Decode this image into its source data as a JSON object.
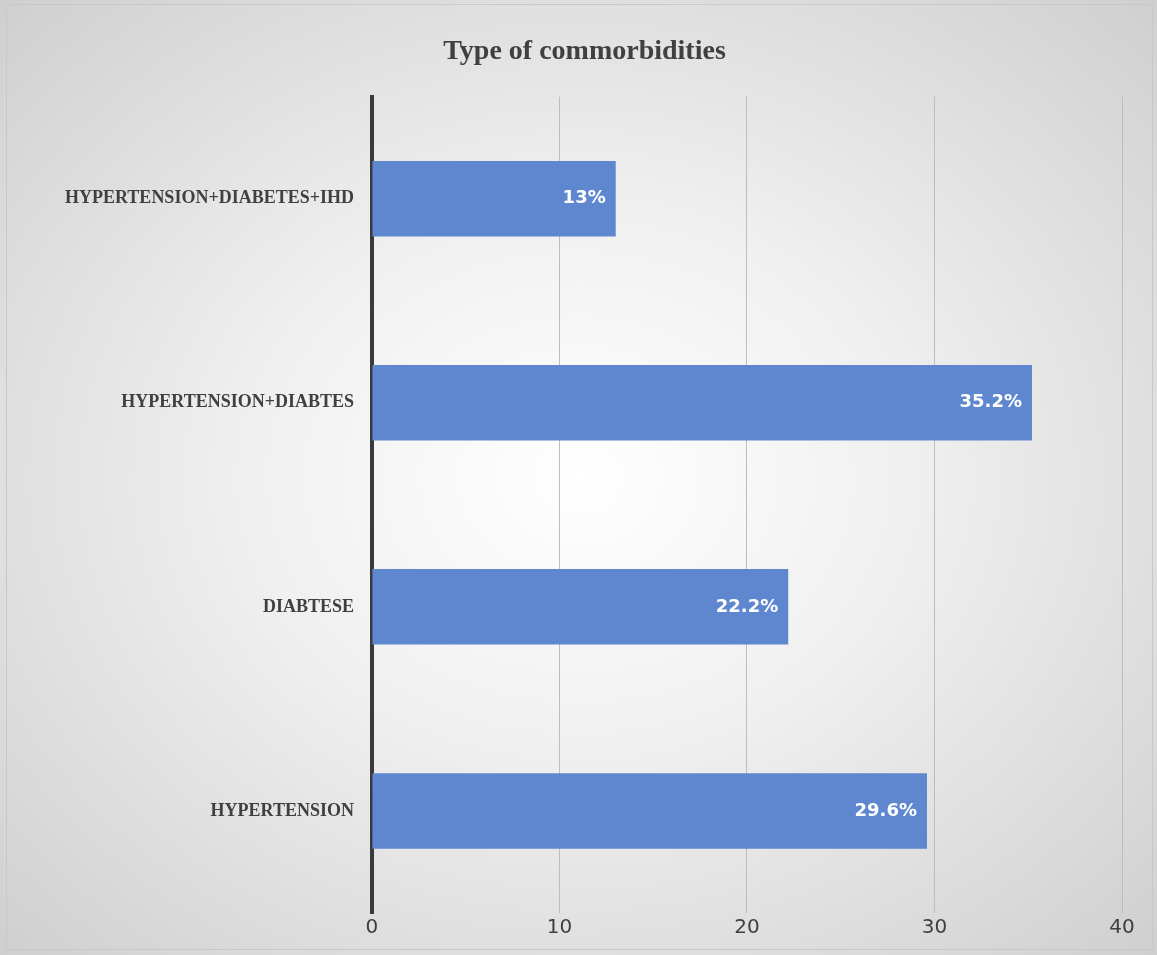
{
  "chart_data": {
    "type": "bar",
    "orientation": "horizontal",
    "title": "Type of commorbidities",
    "categories": [
      "HYPERTENSION+DIABETES+IHD",
      "HYPERTENSION+DIABTES",
      "DIABTESE",
      "HYPERTENSION"
    ],
    "values": [
      13,
      35.2,
      22.2,
      29.6
    ],
    "value_labels": [
      "13%",
      "35.2%",
      "22.2%",
      "29.6%"
    ],
    "color": "#5f87cf",
    "xlim": [
      0,
      40
    ],
    "xticks": [
      0,
      10,
      20,
      30,
      40
    ],
    "grid": "x",
    "legend": false
  }
}
